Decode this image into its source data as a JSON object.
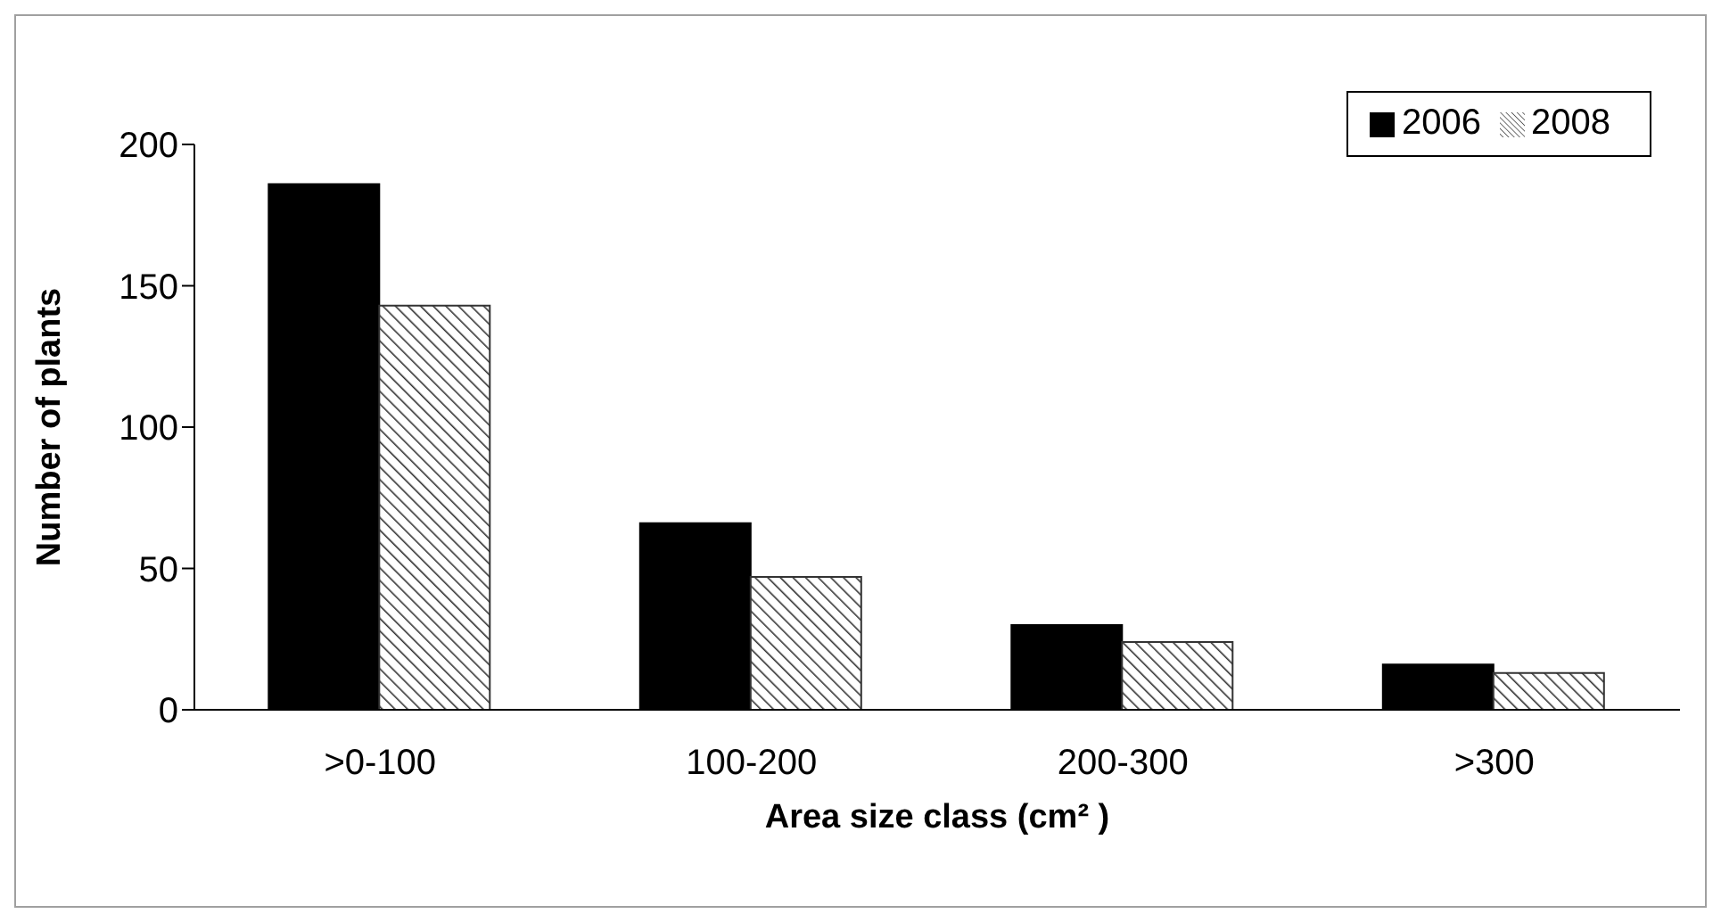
{
  "chart_data": {
    "type": "bar",
    "xlabel": "Area size class (cm² )",
    "ylabel": "Number of plants",
    "categories": [
      ">0-100",
      "100-200",
      "200-300",
      ">300"
    ],
    "series": [
      {
        "name": "2006",
        "color": "#000000",
        "values": [
          186,
          66,
          30,
          16
        ]
      },
      {
        "name": "2008",
        "color": "#333333",
        "values": [
          143,
          47,
          24,
          13
        ]
      }
    ],
    "ylim": [
      0,
      200
    ],
    "yticks": [
      0,
      50,
      100,
      150,
      200
    ],
    "grid": false,
    "legend": "top right"
  }
}
